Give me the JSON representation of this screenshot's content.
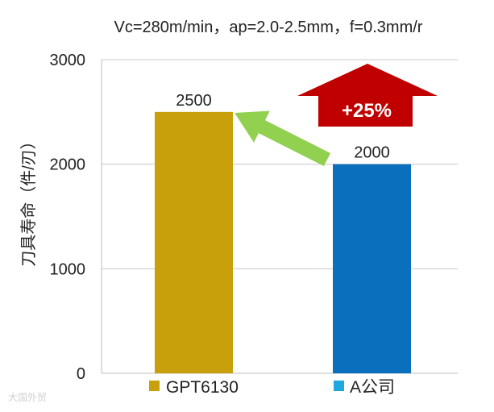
{
  "chart_data": {
    "type": "bar",
    "title": "Vc=280m/min，ap=2.0-2.5mm，f=0.3mm/r",
    "ylabel": "刀具寿命（件/刃）",
    "xlabel": "",
    "ylim": [
      0,
      3000
    ],
    "yticks": [
      0,
      1000,
      2000,
      3000
    ],
    "grid": true,
    "legend_position": "bottom",
    "categories": [
      "GPT6130",
      "A公司"
    ],
    "values": [
      2500,
      2000
    ],
    "data_labels": [
      "2500",
      "2000"
    ],
    "bar_colors": [
      "#C8A00C",
      "#0A70BE"
    ],
    "legend": [
      {
        "label": "GPT6130",
        "color": "#C8A00C"
      },
      {
        "label": "A公司",
        "color": "#1FA7DF"
      }
    ],
    "annotations": {
      "increase_label": "+25%",
      "increase_arrow_color": "#C00000",
      "comparison_arrow_color": "#92D050"
    }
  },
  "watermark_text": "大国外贸"
}
